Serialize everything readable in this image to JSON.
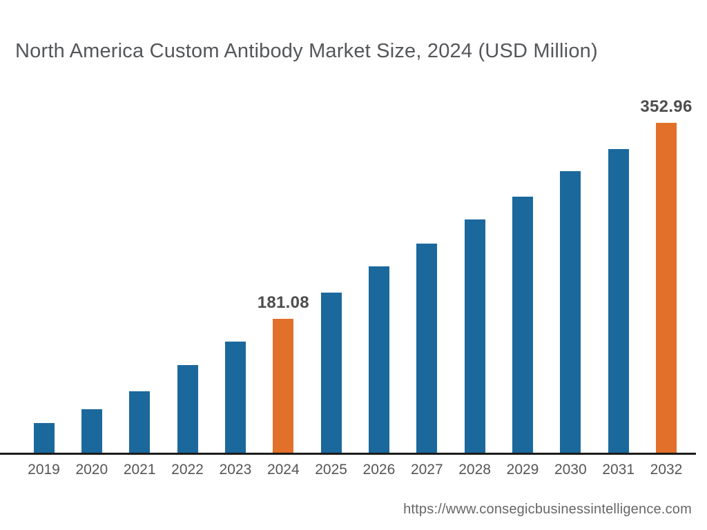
{
  "page": {
    "background": "#ffffff",
    "footer_url": "https://www.consegicbusinessintelligence.com"
  },
  "chart_data": {
    "type": "bar",
    "title": "North America Custom Antibody Market Size, 2024 (USD Million)",
    "xlabel": "",
    "ylabel": "",
    "categories": [
      "2019",
      "2020",
      "2021",
      "2022",
      "2023",
      "2024",
      "2025",
      "2026",
      "2027",
      "2028",
      "2029",
      "2030",
      "2031",
      "2032"
    ],
    "values": [
      89.4,
      101.8,
      117.5,
      140.5,
      161.1,
      181.08,
      204.1,
      227.1,
      247.0,
      268.2,
      288.2,
      310.6,
      330.0,
      352.96
    ],
    "data_labels": [
      "",
      "",
      "",
      "",
      "",
      "181.08",
      "",
      "",
      "",
      "",
      "",
      "",
      "",
      "352.96"
    ],
    "highlighted_categories": [
      "2024",
      "2032"
    ],
    "bar_color": "#1B689D",
    "highlight_color": "#E2702A",
    "axis_color": "#1A1A1A",
    "tick_label_color": "#555555",
    "value_label_color": "#4D4D4D",
    "title_color": "#54565A",
    "ylim": [
      63.67,
      352.96
    ],
    "grid": false,
    "legend": false
  }
}
